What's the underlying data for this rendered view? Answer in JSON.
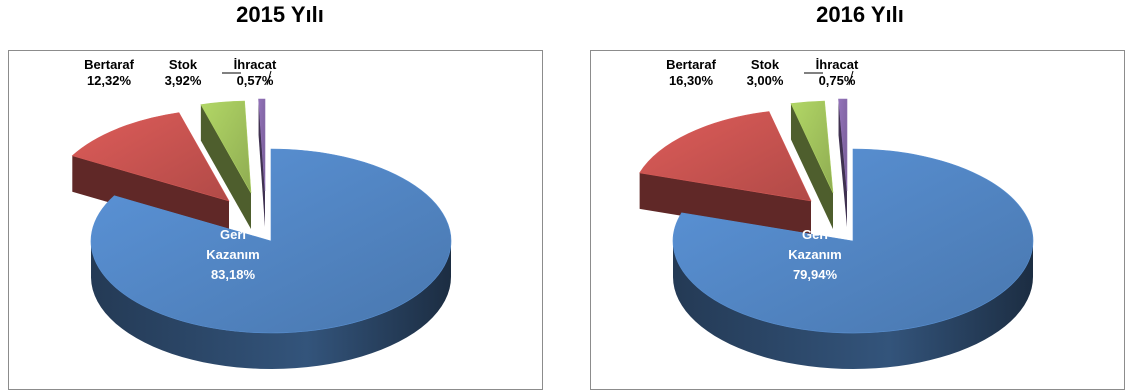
{
  "chart_data": [
    {
      "type": "pie",
      "title": "2015 Yılı",
      "slices": [
        {
          "label_lines": [
            "Geri",
            "Kazanım"
          ],
          "value_label": "83,18%",
          "value": 83.18,
          "color": "#4f81bd"
        },
        {
          "label_lines": [
            "Bertaraf"
          ],
          "value_label": "12,32%",
          "value": 12.32,
          "color": "#c0504d"
        },
        {
          "label_lines": [
            "Stok"
          ],
          "value_label": "3,92%",
          "value": 3.92,
          "color": "#9bbb59"
        },
        {
          "label_lines": [
            "İhracat"
          ],
          "value_label": "0,57%",
          "value": 0.57,
          "color": "#8064a2"
        }
      ]
    },
    {
      "type": "pie",
      "title": "2016 Yılı",
      "slices": [
        {
          "label_lines": [
            "Geri",
            "Kazanım"
          ],
          "value_label": "79,94%",
          "value": 79.94,
          "color": "#4f81bd"
        },
        {
          "label_lines": [
            "Bertaraf"
          ],
          "value_label": "16,30%",
          "value": 16.3,
          "color": "#c0504d"
        },
        {
          "label_lines": [
            "Stok"
          ],
          "value_label": "3,00%",
          "value": 3.0,
          "color": "#9bbb59"
        },
        {
          "label_lines": [
            "İhracat"
          ],
          "value_label": "0,75%",
          "value": 0.75,
          "color": "#8064a2"
        }
      ]
    }
  ]
}
